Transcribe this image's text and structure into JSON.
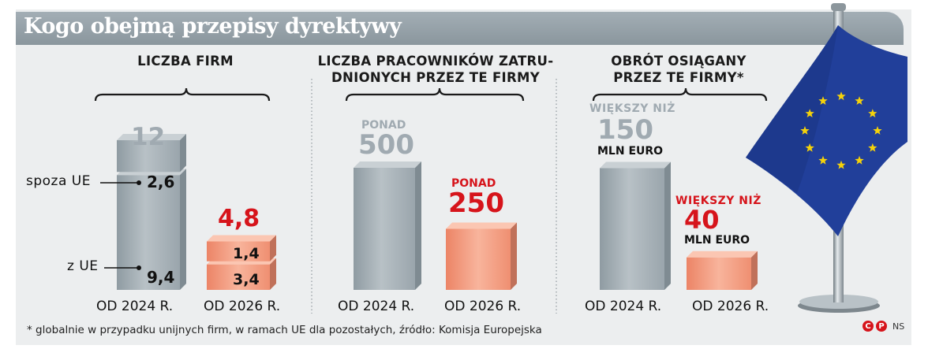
{
  "title": "Kogo obejmą przepisy dyrektywy",
  "footnote": "* globalnie w przypadku unijnych firm, w ramach UE dla pozostałych, źródło: Komisja Europejska",
  "credit": {
    "c": "C",
    "p": "P",
    "author": "NS"
  },
  "colors": {
    "grey_bar": "#a2adb4",
    "salmon_bar": "#f49d80",
    "red_text": "#d6141b",
    "grey_text": "#a0aab1",
    "title_bar": "#96a2a9"
  },
  "panels": [
    {
      "header": [
        "LICZBA FIRM"
      ],
      "left": {
        "top_label": "12",
        "segments": [
          {
            "label": "spoza UE",
            "value": "2,6"
          },
          {
            "label": "z UE",
            "value": "9,4"
          }
        ],
        "x_label": "OD 2024 R."
      },
      "right": {
        "top_label": "4,8",
        "segments": [
          {
            "value": "1,4"
          },
          {
            "value": "3,4"
          }
        ],
        "x_label": "OD 2026 R."
      }
    },
    {
      "header": [
        "LICZBA PRACOWNIKÓW ZATRU-",
        "DNIONYCH PRZEZ TE FIRMY"
      ],
      "left": {
        "prefix": "PONAD",
        "value": "500",
        "x_label": "OD 2024 R."
      },
      "right": {
        "prefix": "PONAD",
        "value": "250",
        "x_label": "OD 2026 R."
      }
    },
    {
      "header": [
        "OBRÓT OSIĄGANY",
        "PRZEZ TE FIRMY*"
      ],
      "left": {
        "prefix": "WIĘKSZY NIŻ",
        "value": "150",
        "suffix": "MLN EURO",
        "x_label": "OD 2024 R."
      },
      "right": {
        "prefix": "WIĘKSZY NIŻ",
        "value": "40",
        "suffix": "MLN EURO",
        "x_label": "OD 2026 R."
      }
    }
  ],
  "chart_data": [
    {
      "type": "bar",
      "title": "LICZBA FIRM",
      "categories": [
        "OD 2024 R.",
        "OD 2026 R."
      ],
      "series": [
        {
          "name": "z UE",
          "values": [
            9.4,
            3.4
          ]
        },
        {
          "name": "spoza UE",
          "values": [
            2.6,
            1.4
          ]
        }
      ],
      "totals": [
        12,
        4.8
      ]
    },
    {
      "type": "bar",
      "title": "LICZBA PRACOWNIKÓW ZATRUDNIONYCH PRZEZ TE FIRMY",
      "categories": [
        "OD 2024 R.",
        "OD 2026 R."
      ],
      "values": [
        500,
        250
      ]
    },
    {
      "type": "bar",
      "title": "OBRÓT OSIĄGANY PRZEZ TE FIRMY",
      "categories": [
        "OD 2024 R.",
        "OD 2026 R."
      ],
      "values": [
        150,
        40
      ],
      "unit": "MLN EURO"
    }
  ]
}
